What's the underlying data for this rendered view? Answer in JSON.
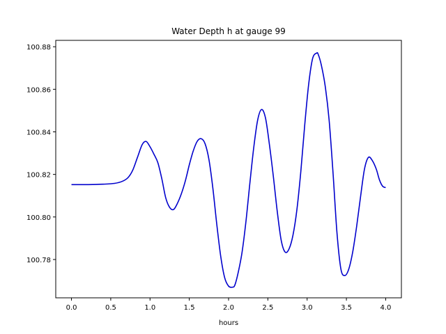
{
  "chart_data": {
    "type": "line",
    "title": "Water Depth h at gauge 99",
    "xlabel": "hours",
    "ylabel": "",
    "xlim": [
      -0.2,
      4.2
    ],
    "ylim": [
      100.762,
      100.883
    ],
    "grid": false,
    "xticks": [
      0.0,
      0.5,
      1.0,
      1.5,
      2.0,
      2.5,
      3.0,
      3.5,
      4.0
    ],
    "xtick_labels": [
      "0.0",
      "0.5",
      "1.0",
      "1.5",
      "2.0",
      "2.5",
      "3.0",
      "3.5",
      "4.0"
    ],
    "yticks": [
      100.78,
      100.8,
      100.82,
      100.84,
      100.86,
      100.88
    ],
    "ytick_labels": [
      "100.78",
      "100.80",
      "100.82",
      "100.84",
      "100.86",
      "100.88"
    ],
    "series": [
      {
        "color": "#0000cc",
        "x": [
          0.0,
          0.2,
          0.4,
          0.55,
          0.65,
          0.72,
          0.78,
          0.84,
          0.9,
          0.95,
          1.0,
          1.05,
          1.1,
          1.15,
          1.2,
          1.25,
          1.3,
          1.35,
          1.4,
          1.45,
          1.5,
          1.55,
          1.6,
          1.65,
          1.7,
          1.75,
          1.8,
          1.85,
          1.9,
          1.95,
          2.0,
          2.05,
          2.08,
          2.12,
          2.17,
          2.22,
          2.27,
          2.32,
          2.37,
          2.42,
          2.47,
          2.52,
          2.57,
          2.62,
          2.67,
          2.72,
          2.77,
          2.82,
          2.87,
          2.92,
          2.97,
          3.02,
          3.07,
          3.12,
          3.14,
          3.18,
          3.23,
          3.28,
          3.33,
          3.38,
          3.43,
          3.48,
          3.53,
          3.58,
          3.63,
          3.68,
          3.73,
          3.78,
          3.83,
          3.88,
          3.92,
          3.96,
          4.0
        ],
        "y": [
          100.8152,
          100.8152,
          100.8154,
          100.8158,
          100.8168,
          100.8185,
          100.822,
          100.828,
          100.834,
          100.8355,
          100.833,
          100.8295,
          100.8255,
          100.818,
          100.809,
          100.8045,
          100.8035,
          100.8065,
          100.811,
          100.817,
          100.8245,
          100.831,
          100.8355,
          100.8368,
          100.8345,
          100.827,
          100.8135,
          100.7965,
          100.7815,
          100.7715,
          100.7675,
          100.767,
          100.768,
          100.7735,
          100.783,
          100.7975,
          100.8155,
          100.8325,
          100.8455,
          100.8505,
          100.8465,
          100.834,
          100.819,
          100.8025,
          100.789,
          100.7835,
          100.785,
          100.7915,
          100.8035,
          100.8215,
          100.8435,
          100.8625,
          100.8745,
          100.877,
          100.8765,
          100.8715,
          100.8615,
          100.8455,
          100.8205,
          100.7925,
          100.7755,
          100.7725,
          100.7755,
          100.7835,
          100.7955,
          100.8095,
          100.8225,
          100.828,
          100.8265,
          100.8225,
          100.8175,
          100.8145,
          100.8138
        ]
      }
    ]
  }
}
